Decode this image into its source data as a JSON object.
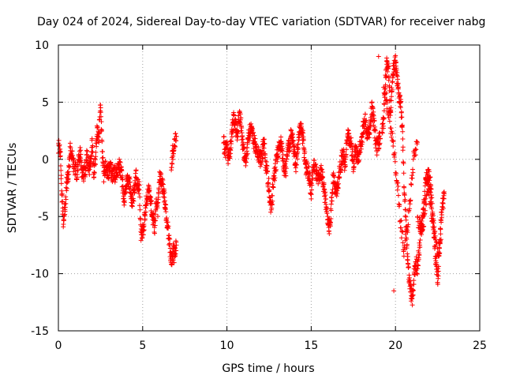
{
  "chart_data": {
    "type": "scatter",
    "title": "Day 024 of 2024, Sidereal Day-to-day VTEC variation (SDTVAR) for receiver nabg",
    "xlabel": "GPS time / hours",
    "ylabel": "SDTVAR / TECUs",
    "xlim": [
      0,
      25
    ],
    "ylim": [
      -15,
      10
    ],
    "xticks": [
      0,
      5,
      10,
      15,
      20,
      25
    ],
    "yticks": [
      -15,
      -10,
      -5,
      0,
      5,
      10
    ],
    "grid": true,
    "marker": "+",
    "series_color": "#ff0000",
    "series": [
      {
        "name": "SDTVAR",
        "segments": [
          {
            "x": [
              0.0,
              0.1,
              0.2,
              0.3,
              0.4,
              0.5,
              0.6,
              0.7,
              0.8,
              0.9,
              1.0,
              1.1,
              1.2,
              1.3,
              1.4,
              1.5,
              1.6,
              1.7,
              1.8,
              1.9,
              2.0,
              2.1,
              2.2,
              2.3,
              2.4,
              2.5,
              2.6,
              2.7,
              2.8,
              2.9,
              3.0,
              3.1,
              3.2,
              3.3,
              3.4,
              3.5,
              3.6,
              3.7,
              3.8,
              3.9,
              4.0,
              4.1,
              4.2,
              4.3,
              4.4,
              4.5,
              4.6,
              4.7,
              4.8,
              4.9,
              5.0,
              5.1,
              5.2,
              5.3,
              5.4,
              5.5,
              5.6,
              5.7,
              5.8,
              5.9,
              6.0,
              6.1,
              6.2,
              6.3,
              6.4,
              6.5,
              6.6,
              6.7,
              6.8,
              6.9,
              7.0
            ],
            "y": [
              1.0,
              1.3,
              -3.0,
              -5.5,
              -4.0,
              -2.0,
              -1.5,
              1.0,
              0.3,
              -0.5,
              -0.8,
              -1.2,
              -0.3,
              0.5,
              -1.0,
              -1.2,
              -0.8,
              0.3,
              -1.0,
              -0.5,
              1.5,
              -1.5,
              0.2,
              2.5,
              2.0,
              5.0,
              0.5,
              -1.5,
              -0.5,
              -1.2,
              -1.0,
              -0.8,
              -1.5,
              -1.0,
              -1.5,
              -0.8,
              -0.5,
              -1.0,
              -2.0,
              -3.5,
              -2.5,
              -1.5,
              -2.0,
              -3.0,
              -3.8,
              -3.0,
              -1.5,
              -2.0,
              -2.5,
              -6.8,
              -6.3,
              -5.5,
              -4.0,
              -3.0,
              -2.5,
              -4.0,
              -5.0,
              -6.0,
              -4.0,
              -4.5,
              -1.5,
              -2.0,
              -2.5,
              -3.5,
              -5.0,
              -6.0,
              -7.5,
              -9.0,
              -8.0,
              -8.5,
              -7.5
            ]
          },
          {
            "x": [
              6.7,
              6.8,
              6.9,
              7.0
            ],
            "y": [
              -0.5,
              0.8,
              1.5,
              2.0
            ]
          },
          {
            "x": [
              9.8,
              9.9,
              10.0,
              10.1,
              10.2,
              10.3,
              10.4,
              10.5,
              10.6,
              10.7,
              10.8,
              10.9,
              11.0,
              11.1,
              11.2,
              11.3,
              11.4,
              11.5,
              11.6,
              11.7,
              11.8,
              11.9,
              12.0,
              12.1,
              12.2,
              12.3,
              12.4,
              12.5,
              12.6,
              12.7,
              12.8,
              12.9,
              13.0,
              13.1,
              13.2,
              13.3,
              13.4,
              13.5,
              13.6,
              13.7,
              13.8,
              13.9,
              14.0,
              14.1,
              14.2,
              14.3,
              14.4,
              14.5,
              14.6,
              14.7,
              14.8,
              14.9,
              15.0,
              15.1,
              15.2,
              15.3,
              15.4,
              15.5,
              15.6,
              15.7,
              15.8,
              15.9,
              16.0,
              16.1,
              16.2,
              16.3,
              16.4,
              16.5,
              16.6,
              16.7,
              16.8,
              16.9,
              17.0,
              17.1,
              17.2,
              17.3,
              17.4,
              17.5,
              17.6,
              17.7,
              17.8,
              17.9,
              18.0,
              18.1,
              18.2,
              18.3,
              18.4,
              18.5,
              18.6,
              18.7,
              18.8,
              18.9,
              19.0,
              19.1
            ],
            "y": [
              1.5,
              0.8,
              1.2,
              -0.3,
              1.0,
              2.5,
              3.5,
              3.0,
              2.0,
              3.5,
              3.8,
              2.0,
              0.5,
              0.0,
              0.8,
              2.0,
              2.8,
              2.2,
              1.5,
              1.2,
              0.5,
              0.3,
              0.0,
              0.6,
              1.5,
              -0.3,
              -1.5,
              -2.5,
              -4.5,
              -3.0,
              -1.5,
              -0.5,
              0.5,
              1.0,
              1.5,
              0.5,
              -0.8,
              -1.0,
              0.8,
              1.2,
              2.0,
              1.8,
              0.5,
              -0.5,
              1.0,
              2.5,
              2.5,
              2.0,
              0.3,
              -0.8,
              -1.0,
              -1.5,
              -3.0,
              -0.8,
              -0.5,
              -1.2,
              -2.0,
              -1.5,
              -1.2,
              -1.8,
              -3.0,
              -4.5,
              -5.5,
              -6.0,
              -4.0,
              -1.5,
              -2.5,
              -3.0,
              -2.0,
              -1.0,
              0.0,
              0.5,
              -0.5,
              1.5,
              2.0,
              1.8,
              1.0,
              -0.5,
              0.8,
              0.5,
              0.3,
              1.0,
              1.5,
              3.0,
              3.5,
              2.5,
              2.0,
              3.0,
              4.5,
              3.5,
              2.0,
              1.0,
              1.5,
              1.8
            ]
          },
          {
            "x": [
              19.2,
              19.3,
              19.4,
              19.5,
              19.6,
              19.7,
              19.8,
              19.9,
              20.0,
              20.1,
              20.2,
              20.3,
              20.4,
              20.5,
              20.6,
              20.7,
              20.8,
              20.9,
              21.0,
              21.1,
              21.2,
              21.3,
              21.4,
              21.5,
              21.6,
              21.7,
              21.8,
              21.9,
              22.0,
              22.1,
              22.2,
              22.3,
              22.4,
              22.5,
              22.6,
              22.7,
              22.8,
              22.9
            ],
            "y": [
              2.5,
              3.5,
              7.0,
              8.5,
              7.5,
              4.0,
              6.5,
              8.0,
              8.5,
              7.0,
              5.5,
              5.0,
              3.0,
              -2.0,
              -5.0,
              -8.0,
              -10.5,
              -11.5,
              -12.5,
              -10.0,
              -9.0,
              -9.5,
              -8.0,
              -6.0,
              -5.5,
              -3.5,
              -2.0,
              -1.5,
              -1.5,
              -2.5,
              -5.0,
              -6.5,
              -9.0,
              -10.5,
              -8.0,
              -5.5,
              -4.0,
              -3.0
            ]
          },
          {
            "x": [
              19.3,
              19.5,
              19.7,
              19.9,
              20.1,
              20.3,
              20.5,
              20.7,
              20.9,
              21.1,
              21.3
            ],
            "y": [
              6.0,
              5.0,
              3.0,
              1.0,
              -2.0,
              -5.5,
              -8.0,
              -6.0,
              -3.0,
              0.5,
              1.5
            ]
          },
          {
            "x": [
              21.3,
              21.5,
              21.7,
              21.9,
              22.1,
              22.3,
              22.5,
              22.7
            ],
            "y": [
              -5.0,
              -6.0,
              -5.5,
              -2.0,
              -4.0,
              -6.5,
              -8.5,
              -7.0
            ]
          },
          {
            "x": [
              19.9
            ],
            "y": [
              -11.5
            ]
          },
          {
            "x": [
              19.0
            ],
            "y": [
              9.0
            ]
          }
        ]
      }
    ]
  }
}
